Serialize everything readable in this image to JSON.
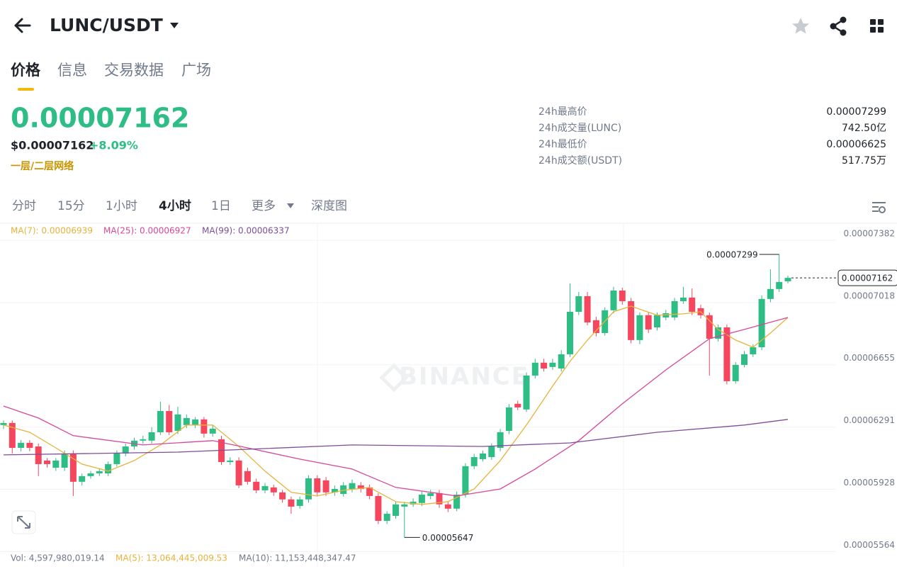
{
  "header": {
    "pair": "LUNC/USDT"
  },
  "tabs": [
    "价格",
    "信息",
    "交易数据",
    "广场"
  ],
  "price": {
    "last": "0.00007162",
    "usd": "$0.00007162",
    "change": "+8.09%",
    "tag": "一层/二层网络"
  },
  "stats": [
    {
      "label": "24h最高价",
      "value": "0.00007299"
    },
    {
      "label": "24h成交量(LUNC)",
      "value": "742.50亿"
    },
    {
      "label": "24h最低价",
      "value": "0.00006625"
    },
    {
      "label": "24h成交额(USDT)",
      "value": "517.75万"
    }
  ],
  "intervals": [
    "分时",
    "15分",
    "1小时",
    "4小时",
    "1日",
    "更多",
    "深度图"
  ],
  "volume": [
    "Vol: 4,597,980,019.14",
    "MA(5): 13,064,445,009.53",
    "MA(10): 11,153,448,347.47"
  ],
  "chart_data": {
    "type": "candlestick",
    "watermark": "BINANCE",
    "up_color": "#2ebd85",
    "down_color": "#f6465d",
    "ylim": [
      5.475e-05,
      7.481e-05
    ],
    "yticks": [
      7.382e-05,
      7.018e-05,
      6.655e-05,
      6.291e-05,
      5.928e-05,
      5.564e-05
    ],
    "ohlc": [
      [
        6.303e-05,
        6.33e-05,
        6.28e-05,
        6.315e-05
      ],
      [
        6.315e-05,
        6.33e-05,
        6.137e-05,
        6.17e-05
      ],
      [
        6.17e-05,
        6.215e-05,
        6.15e-05,
        6.199e-05
      ],
      [
        6.199e-05,
        6.215e-05,
        6.15e-05,
        6.17e-05
      ],
      [
        6.178e-05,
        6.195e-05,
        6.005e-05,
        6.075e-05
      ],
      [
        6.096e-05,
        6.11e-05,
        6.055e-05,
        6.075e-05
      ],
      [
        6.054e-05,
        6.11e-05,
        6.035e-05,
        6.096e-05
      ],
      [
        6.054e-05,
        6.155e-05,
        6.035e-05,
        6.137e-05
      ],
      [
        6.137e-05,
        6.155e-05,
        5.889e-05,
        5.972e-05
      ],
      [
        5.972e-05,
        6.02e-05,
        5.95e-05,
        6.005e-05
      ],
      [
        6.005e-05,
        6.035e-05,
        5.99e-05,
        6.021e-05
      ],
      [
        6.021e-05,
        6.05e-05,
        6.005e-05,
        6.034e-05
      ],
      [
        6.021e-05,
        6.09e-05,
        6.005e-05,
        6.075e-05
      ],
      [
        6.075e-05,
        6.155e-05,
        6.06e-05,
        6.137e-05
      ],
      [
        6.137e-05,
        6.195e-05,
        6.12e-05,
        6.178e-05
      ],
      [
        6.178e-05,
        6.23e-05,
        6.16e-05,
        6.212e-05
      ],
      [
        6.212e-05,
        6.24e-05,
        6.195e-05,
        6.22e-05
      ],
      [
        6.212e-05,
        6.29e-05,
        6.195e-05,
        6.261e-05
      ],
      [
        6.261e-05,
        6.439e-05,
        6.245e-05,
        6.385e-05
      ],
      [
        6.385e-05,
        6.42e-05,
        6.245e-05,
        6.261e-05
      ],
      [
        6.269e-05,
        6.41e-05,
        6.25e-05,
        6.365e-05
      ],
      [
        6.303e-05,
        6.365e-05,
        6.285e-05,
        6.344e-05
      ],
      [
        6.303e-05,
        6.35e-05,
        6.285e-05,
        6.336e-05
      ],
      [
        6.336e-05,
        6.35e-05,
        6.23e-05,
        6.253e-05
      ],
      [
        6.253e-05,
        6.3e-05,
        6.235e-05,
        6.282e-05
      ],
      [
        6.22e-05,
        6.24e-05,
        6.07e-05,
        6.087e-05
      ],
      [
        6.087e-05,
        6.115e-05,
        6.07e-05,
        6.096e-05
      ],
      [
        6.096e-05,
        6.115e-05,
        5.935e-05,
        5.951e-05
      ],
      [
        6.034e-05,
        6.055e-05,
        5.955e-05,
        5.972e-05
      ],
      [
        5.972e-05,
        5.99e-05,
        5.905e-05,
        5.922e-05
      ],
      [
        5.922e-05,
        5.965e-05,
        5.905e-05,
        5.947e-05
      ],
      [
        5.939e-05,
        5.955e-05,
        5.89e-05,
        5.91e-05
      ],
      [
        5.91e-05,
        5.925e-05,
        5.85e-05,
        5.869e-05
      ],
      [
        5.869e-05,
        5.885e-05,
        5.785e-05,
        5.827e-05
      ],
      [
        5.831e-05,
        5.885e-05,
        5.815e-05,
        5.869e-05
      ],
      [
        5.869e-05,
        6.01e-05,
        5.85e-05,
        5.992e-05
      ],
      [
        5.992e-05,
        6.01e-05,
        5.89e-05,
        5.91e-05
      ],
      [
        5.98e-05,
        6e-05,
        5.89e-05,
        5.91e-05
      ],
      [
        5.91e-05,
        5.95e-05,
        5.89e-05,
        5.93e-05
      ],
      [
        5.901e-05,
        5.97e-05,
        5.885e-05,
        5.951e-05
      ],
      [
        5.93e-05,
        5.985e-05,
        5.91e-05,
        5.964e-05
      ],
      [
        5.951e-05,
        5.97e-05,
        5.91e-05,
        5.93e-05
      ],
      [
        5.939e-05,
        5.955e-05,
        5.87e-05,
        5.889e-05
      ],
      [
        5.889e-05,
        5.905e-05,
        5.725e-05,
        5.744e-05
      ],
      [
        5.744e-05,
        5.8e-05,
        5.725e-05,
        5.785e-05
      ],
      [
        5.773e-05,
        5.855e-05,
        5.755e-05,
        5.84e-05
      ],
      [
        5.827e-05,
        5.855e-05,
        5.647e-05,
        5.84e-05
      ],
      [
        5.84e-05,
        5.875e-05,
        5.825e-05,
        5.856e-05
      ],
      [
        5.848e-05,
        5.915e-05,
        5.83e-05,
        5.897e-05
      ],
      [
        5.889e-05,
        5.925e-05,
        5.87e-05,
        5.906e-05
      ],
      [
        5.906e-05,
        5.925e-05,
        5.82e-05,
        5.84e-05
      ],
      [
        5.84e-05,
        5.855e-05,
        5.795e-05,
        5.815e-05
      ],
      [
        5.815e-05,
        5.915e-05,
        5.8e-05,
        5.897e-05
      ],
      [
        5.897e-05,
        6.08e-05,
        5.88e-05,
        6.063e-05
      ],
      [
        6.063e-05,
        6.135e-05,
        6.045e-05,
        6.116e-05
      ],
      [
        6.104e-05,
        6.155e-05,
        6.09e-05,
        6.137e-05
      ],
      [
        6.116e-05,
        6.195e-05,
        6.1e-05,
        6.178e-05
      ],
      [
        6.17e-05,
        6.28e-05,
        6.15e-05,
        6.261e-05
      ],
      [
        6.269e-05,
        6.425e-05,
        6.25e-05,
        6.406e-05
      ],
      [
        6.427e-05,
        6.445e-05,
        6.39e-05,
        6.406e-05
      ],
      [
        6.394e-05,
        6.61e-05,
        6.38e-05,
        6.592e-05
      ],
      [
        6.592e-05,
        6.69e-05,
        6.575e-05,
        6.667e-05
      ],
      [
        6.667e-05,
        6.69e-05,
        6.615e-05,
        6.633e-05
      ],
      [
        6.642e-05,
        6.69e-05,
        6.625e-05,
        6.667e-05
      ],
      [
        6.633e-05,
        6.74e-05,
        6.615e-05,
        6.716e-05
      ],
      [
        6.716e-05,
        7.13e-05,
        6.7e-05,
        6.964e-05
      ],
      [
        6.964e-05,
        7.08e-05,
        6.945e-05,
        7.055e-05
      ],
      [
        7.055e-05,
        7.08e-05,
        6.885e-05,
        6.902e-05
      ],
      [
        6.915e-05,
        6.935e-05,
        6.82e-05,
        6.84e-05
      ],
      [
        6.84e-05,
        6.99e-05,
        6.825e-05,
        6.973e-05
      ],
      [
        6.973e-05,
        7.11e-05,
        6.955e-05,
        7.088e-05
      ],
      [
        7.088e-05,
        7.105e-05,
        7.005e-05,
        7.026e-05
      ],
      [
        7.026e-05,
        7.045e-05,
        6.78e-05,
        6.799e-05
      ],
      [
        6.799e-05,
        6.96e-05,
        6.775e-05,
        6.944e-05
      ],
      [
        6.944e-05,
        6.96e-05,
        6.84e-05,
        6.861e-05
      ],
      [
        6.873e-05,
        6.96e-05,
        6.855e-05,
        6.944e-05
      ],
      [
        6.931e-05,
        6.975e-05,
        6.915e-05,
        6.956e-05
      ],
      [
        6.931e-05,
        7.045e-05,
        6.915e-05,
        7.026e-05
      ],
      [
        7.026e-05,
        7.11e-05,
        7.01e-05,
        7.047e-05
      ],
      [
        7.047e-05,
        7.1e-05,
        6.945e-05,
        6.964e-05
      ],
      [
        6.985e-05,
        7.005e-05,
        6.925e-05,
        6.944e-05
      ],
      [
        6.944e-05,
        6.96e-05,
        6.592e-05,
        6.807e-05
      ],
      [
        6.807e-05,
        6.89e-05,
        6.79e-05,
        6.873e-05
      ],
      [
        6.873e-05,
        6.89e-05,
        6.54e-05,
        6.559e-05
      ],
      [
        6.559e-05,
        6.67e-05,
        6.545e-05,
        6.654e-05
      ],
      [
        6.654e-05,
        6.735e-05,
        6.64e-05,
        6.716e-05
      ],
      [
        6.716e-05,
        6.775e-05,
        6.7e-05,
        6.757e-05
      ],
      [
        6.757e-05,
        7.06e-05,
        6.74e-05,
        7.039e-05
      ],
      [
        7.039e-05,
        7.212e-05,
        7.02e-05,
        7.097e-05
      ],
      [
        7.097e-05,
        7.299e-05,
        7.08e-05,
        7.138e-05
      ],
      [
        7.142e-05,
        7.175e-05,
        7.13e-05,
        7.162e-05
      ]
    ],
    "ma": [
      {
        "label": "MA(7): 0.00006939",
        "color": "#e8b33a",
        "x": [
          0,
          3,
          6,
          9,
          12,
          15,
          18,
          21,
          24,
          27,
          30,
          33,
          36,
          39,
          42,
          45,
          48,
          51,
          54,
          57,
          60,
          63,
          65,
          67,
          70,
          72,
          75,
          78,
          80,
          82,
          84,
          86,
          88,
          90
        ],
        "values": [
          6.303e-05,
          6.261e-05,
          6.17e-05,
          6.075e-05,
          6.034e-05,
          6.096e-05,
          6.187e-05,
          6.303e-05,
          6.303e-05,
          6.178e-05,
          6.034e-05,
          5.91e-05,
          5.889e-05,
          5.922e-05,
          5.939e-05,
          5.856e-05,
          5.84e-05,
          5.856e-05,
          5.93e-05,
          6.096e-05,
          6.303e-05,
          6.53e-05,
          6.675e-05,
          6.799e-05,
          6.964e-05,
          6.997e-05,
          6.944e-05,
          6.952e-05,
          6.964e-05,
          6.861e-05,
          6.799e-05,
          6.757e-05,
          6.84e-05,
          6.931e-05
        ]
      },
      {
        "label": "MA(25): 0.00006927",
        "color": "#d6479a",
        "x": [
          0,
          4,
          8,
          16,
          24,
          28,
          34,
          40,
          45,
          52,
          57,
          61,
          66,
          71,
          76,
          81,
          85,
          90
        ],
        "values": [
          6.414e-05,
          6.344e-05,
          6.241e-05,
          6.187e-05,
          6.212e-05,
          6.17e-05,
          6.104e-05,
          6.046e-05,
          5.939e-05,
          5.889e-05,
          5.93e-05,
          6.046e-05,
          6.212e-05,
          6.427e-05,
          6.625e-05,
          6.807e-05,
          6.861e-05,
          6.931e-05
        ]
      },
      {
        "label": "MA(99): 0.00006337",
        "color": "#7d4f9a",
        "x": [
          0,
          20,
          40,
          55,
          65,
          75,
          85,
          90
        ],
        "values": [
          6.129e-05,
          6.145e-05,
          6.187e-05,
          6.178e-05,
          6.199e-05,
          6.261e-05,
          6.303e-05,
          6.336e-05
        ]
      }
    ]
  }
}
